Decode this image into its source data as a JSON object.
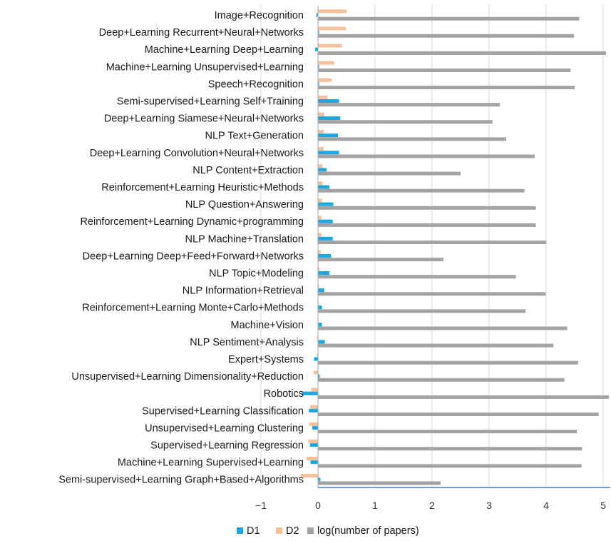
{
  "chart_data": {
    "type": "bar",
    "orientation": "horizontal",
    "title": "",
    "xlabel": "",
    "ylabel": "",
    "xlim": [
      -1,
      5
    ],
    "xticks": [
      -1,
      0,
      1,
      2,
      3,
      4,
      5
    ],
    "xtick_labels": [
      "−1",
      "0",
      "1",
      "2",
      "3",
      "4",
      "5"
    ],
    "grid": "vertical",
    "legend_position": "bottom",
    "categories": [
      "Image+Recognition",
      "Deep+Learning Recurrent+Neural+Networks",
      "Machine+Learning Deep+Learning",
      "Machine+Learning Unsupervised+Learning",
      "Speech+Recognition",
      "Semi-supervised+Learning Self+Training",
      "Deep+Learning Siamese+Neural+Networks",
      "NLP Text+Generation",
      "Deep+Learning Convolution+Neural+Networks",
      "NLP Content+Extraction",
      "Reinforcement+Learning Heuristic+Methods",
      "NLP Question+Answering",
      "Reinforcement+Learning Dynamic+programming",
      "NLP Machine+Translation",
      "Deep+Learning Deep+Feed+Forward+Networks",
      "NLP Topic+Modeling",
      "NLP Information+Retrieval",
      "Reinforcement+Learning Monte+Carlo+Methods",
      "Machine+Vision",
      "NLP Sentiment+Analysis",
      "Expert+Systems",
      "Unsupervised+Learning Dimensionality+Reduction",
      "Robotics",
      "Supervised+Learning Classification",
      "Unsupervised+Learning Clustering",
      "Supervised+Learning Regression",
      "Machine+Learning Supervised+Learning",
      "Semi-supervised+Learning Graph+Based+Algorithms"
    ],
    "series": [
      {
        "name": "D2",
        "color": "#f4c19a",
        "values": [
          0.5,
          0.49,
          0.42,
          0.28,
          0.24,
          0.17,
          0.11,
          0.1,
          0.1,
          0.08,
          0.08,
          0.07,
          0.06,
          0.06,
          0.05,
          0.03,
          0.02,
          0.01,
          -0.01,
          -0.02,
          -0.02,
          -0.08,
          -0.12,
          -0.14,
          -0.15,
          -0.17,
          -0.2,
          -0.3
        ]
      },
      {
        "name": "D1",
        "color": "#1ba7e0",
        "values": [
          -0.03,
          0.02,
          -0.05,
          0.02,
          0.02,
          0.37,
          0.39,
          0.35,
          0.37,
          0.15,
          0.2,
          0.27,
          0.26,
          0.26,
          0.23,
          0.2,
          0.11,
          0.07,
          0.07,
          0.12,
          -0.07,
          0.03,
          -0.28,
          -0.16,
          -0.1,
          -0.14,
          -0.13,
          0.04
        ]
      },
      {
        "name": "log(number of papers)",
        "color": "#a3a3a3",
        "values": [
          4.58,
          4.49,
          5.05,
          4.43,
          4.5,
          3.19,
          3.06,
          3.3,
          3.8,
          2.5,
          3.62,
          3.82,
          3.82,
          4.0,
          2.2,
          3.47,
          3.99,
          3.64,
          4.37,
          4.13,
          4.56,
          4.32,
          5.1,
          4.92,
          4.54,
          4.63,
          4.62,
          2.15
        ]
      }
    ]
  }
}
